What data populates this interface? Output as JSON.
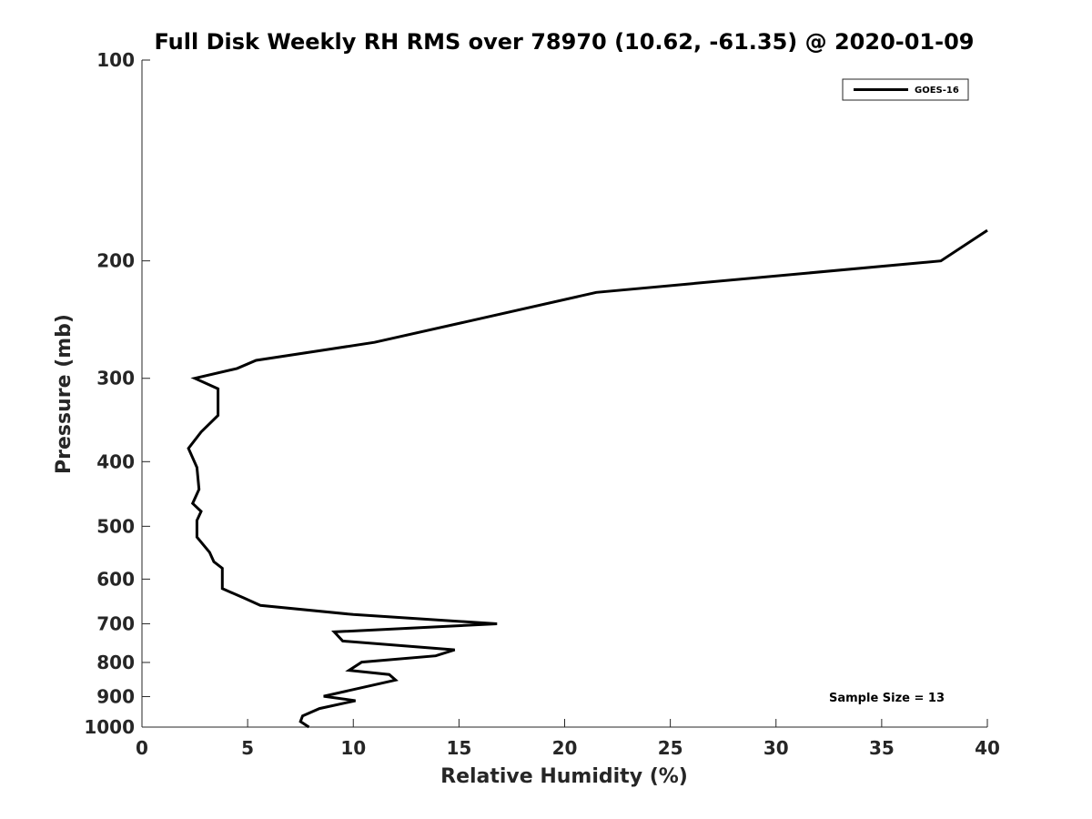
{
  "chart_data": {
    "type": "line",
    "title": "Full Disk Weekly RH RMS over 78970 (10.62, -61.35) @ 2020-01-09",
    "xlabel": "Relative Humidity (%)",
    "ylabel": "Pressure (mb)",
    "xlim": [
      0,
      40
    ],
    "ylim": [
      100,
      1000
    ],
    "y_scale": "log",
    "y_reversed": true,
    "x_ticks": [
      0,
      5,
      10,
      15,
      20,
      25,
      30,
      35,
      40
    ],
    "y_ticks": [
      100,
      200,
      300,
      400,
      500,
      600,
      700,
      800,
      900,
      1000
    ],
    "grid": false,
    "legend": {
      "position": "top-right",
      "entries": [
        "GOES-16"
      ]
    },
    "annotation": "Sample Size = 13",
    "series": [
      {
        "name": "GOES-16",
        "color": "#000000",
        "points": [
          [
            40.0,
            180
          ],
          [
            37.8,
            200
          ],
          [
            21.5,
            223
          ],
          [
            15.3,
            247
          ],
          [
            11.0,
            265
          ],
          [
            5.4,
            282
          ],
          [
            4.5,
            290
          ],
          [
            2.5,
            300
          ],
          [
            3.6,
            311
          ],
          [
            3.6,
            341
          ],
          [
            2.8,
            361
          ],
          [
            2.2,
            382
          ],
          [
            2.6,
            408
          ],
          [
            2.7,
            440
          ],
          [
            2.4,
            462
          ],
          [
            2.8,
            475
          ],
          [
            2.6,
            490
          ],
          [
            2.6,
            519
          ],
          [
            3.2,
            547
          ],
          [
            3.4,
            565
          ],
          [
            3.8,
            578
          ],
          [
            3.8,
            620
          ],
          [
            4.8,
            640
          ],
          [
            5.6,
            657
          ],
          [
            10.0,
            678
          ],
          [
            16.8,
            700
          ],
          [
            9.1,
            720
          ],
          [
            9.5,
            743
          ],
          [
            14.8,
            766
          ],
          [
            13.9,
            782
          ],
          [
            10.4,
            799
          ],
          [
            9.8,
            822
          ],
          [
            11.7,
            834
          ],
          [
            12.0,
            850
          ],
          [
            8.6,
            899
          ],
          [
            10.1,
            913
          ],
          [
            8.4,
            938
          ],
          [
            7.6,
            962
          ],
          [
            7.5,
            981
          ],
          [
            7.9,
            1000
          ]
        ]
      }
    ]
  }
}
